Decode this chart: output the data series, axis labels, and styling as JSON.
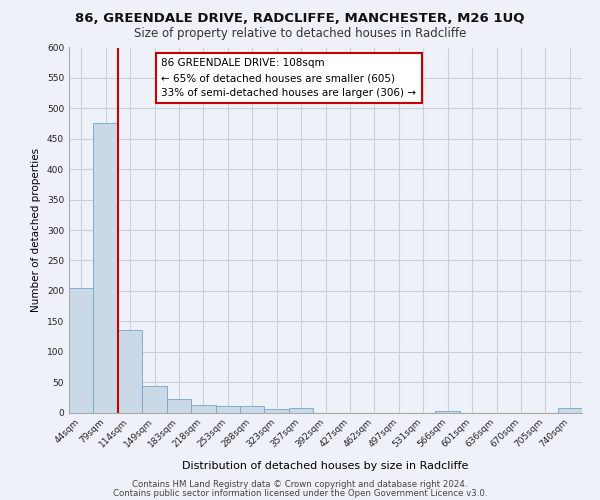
{
  "title": "86, GREENDALE DRIVE, RADCLIFFE, MANCHESTER, M26 1UQ",
  "subtitle": "Size of property relative to detached houses in Radcliffe",
  "xlabel": "Distribution of detached houses by size in Radcliffe",
  "ylabel": "Number of detached properties",
  "bin_labels": [
    "44sqm",
    "79sqm",
    "114sqm",
    "149sqm",
    "183sqm",
    "218sqm",
    "253sqm",
    "288sqm",
    "323sqm",
    "357sqm",
    "392sqm",
    "427sqm",
    "462sqm",
    "497sqm",
    "531sqm",
    "566sqm",
    "601sqm",
    "636sqm",
    "670sqm",
    "705sqm",
    "740sqm"
  ],
  "bar_values": [
    204,
    476,
    136,
    43,
    23,
    13,
    10,
    10,
    5,
    8,
    0,
    0,
    0,
    0,
    0,
    3,
    0,
    0,
    0,
    0,
    8
  ],
  "bar_color": "#c9d9e8",
  "bar_edge_color": "#6fa8c8",
  "ylim": [
    0,
    600
  ],
  "yticks": [
    0,
    50,
    100,
    150,
    200,
    250,
    300,
    350,
    400,
    450,
    500,
    550,
    600
  ],
  "grid_color": "#c8d0dc",
  "background_color": "#eef2f8",
  "vline_x": 2,
  "vline_color": "#cc0000",
  "annotation_line1": "86 GREENDALE DRIVE: 108sqm",
  "annotation_line2": "← 65% of detached houses are smaller (605)",
  "annotation_line3": "33% of semi-detached houses are larger (306) →",
  "annotation_box_color": "#ffffff",
  "annotation_box_edge": "#cc0000",
  "footer_line1": "Contains HM Land Registry data © Crown copyright and database right 2024.",
  "footer_line2": "Contains public sector information licensed under the Open Government Licence v3.0."
}
